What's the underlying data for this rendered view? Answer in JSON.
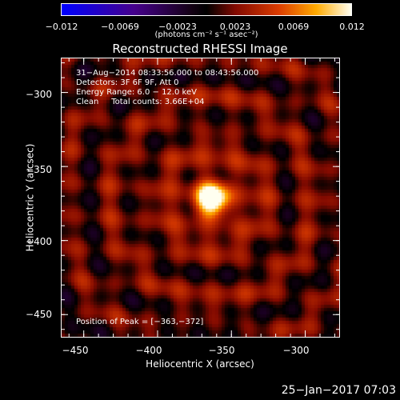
{
  "colorbar": {
    "ticks": [
      "−0.012",
      "−0.0069",
      "−0.0023",
      "0.0023",
      "0.0069",
      "0.012"
    ],
    "tick_values": [
      -0.012,
      -0.0069,
      -0.0023,
      0.0023,
      0.0069,
      0.012
    ],
    "unit_label": "(photons cm⁻² s⁻¹ asec⁻²)",
    "range": [
      -0.012,
      0.012
    ]
  },
  "chart_data": {
    "type": "heatmap",
    "title": "Reconstructed RHESSI Image",
    "xlabel": "Heliocentric X (arcsec)",
    "ylabel": "Heliocentric Y (arcsec)",
    "xlim": [
      -465,
      -277
    ],
    "ylim": [
      -465,
      -277
    ],
    "x_ticks": [
      -450,
      -400,
      -350,
      -300
    ],
    "y_ticks": [
      -300,
      -350,
      -400,
      -450
    ],
    "x_tick_labels": [
      "−450",
      "−400",
      "−350",
      "−300"
    ],
    "y_tick_labels": [
      "−300",
      "−350",
      "−400",
      "−450"
    ],
    "peak": [
      -363,
      -372
    ],
    "peak_value": 0.012
  },
  "info": {
    "line1": "31−Aug−2014 08:33:56.000 to 08:43:56.000",
    "line2": "Detectors: 3F 6F 9F, Att 0",
    "line3": "Energy Range: 6.0 − 12.0 keV",
    "line4": "Clean     Total counts: 3.66E+04",
    "peak_text": "Position of Peak = [−363,−372]"
  },
  "date_stamp": "25−Jan−2017 07:03"
}
